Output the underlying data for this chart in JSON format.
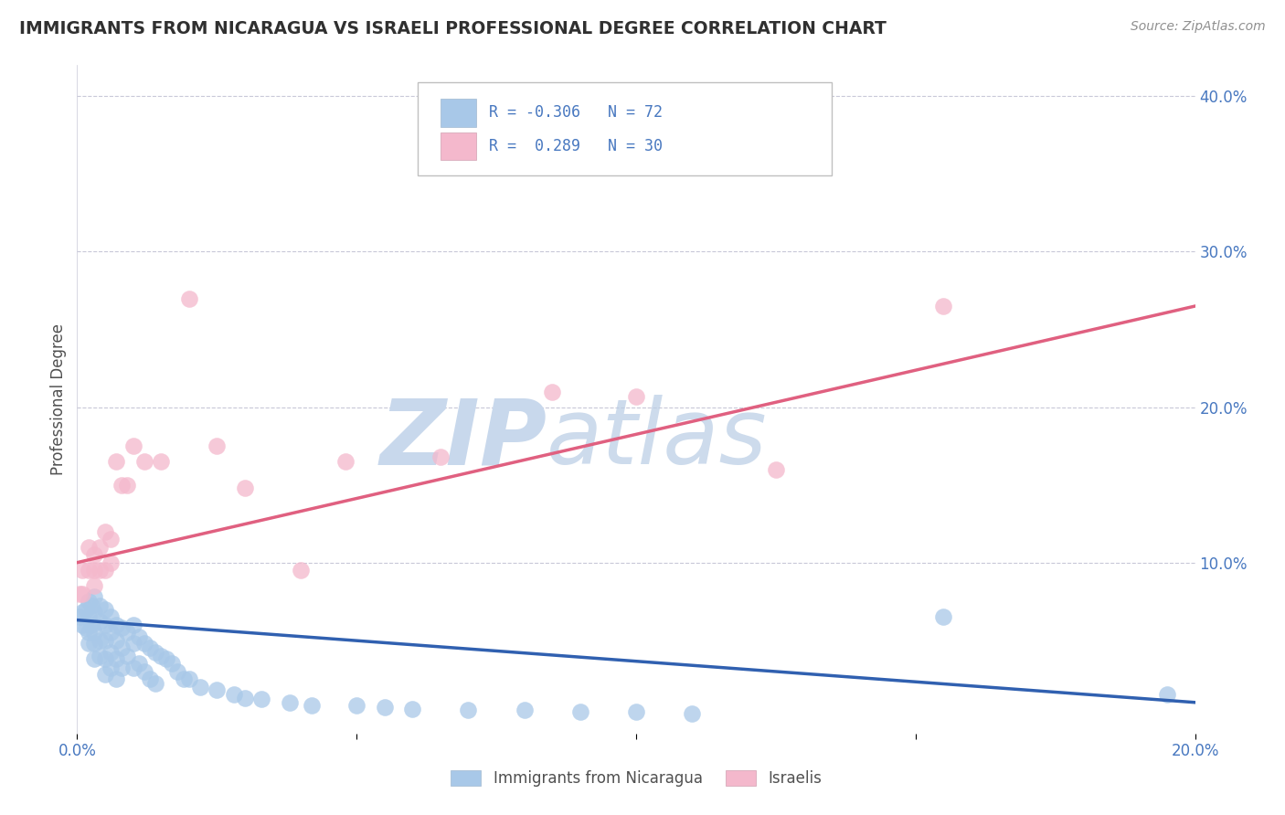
{
  "title": "IMMIGRANTS FROM NICARAGUA VS ISRAELI PROFESSIONAL DEGREE CORRELATION CHART",
  "source": "Source: ZipAtlas.com",
  "ylabel": "Professional Degree",
  "legend_label1": "Immigrants from Nicaragua",
  "legend_label2": "Israelis",
  "R1": -0.306,
  "N1": 72,
  "R2": 0.289,
  "N2": 30,
  "color1": "#a8c8e8",
  "color2": "#f4b8cc",
  "line_color1": "#3060b0",
  "line_color2": "#e06080",
  "bg_color": "#ffffff",
  "grid_color": "#c8c8d8",
  "watermark": "ZIPatlas",
  "watermark_color": "#dce8f4",
  "title_color": "#303030",
  "axis_label_color": "#4878c0",
  "x_min": 0.0,
  "x_max": 0.2,
  "y_min": -0.01,
  "y_max": 0.42,
  "yticks": [
    0.1,
    0.2,
    0.3,
    0.4
  ],
  "blue_scatter_x": [
    0.0005,
    0.001,
    0.001,
    0.0015,
    0.0015,
    0.002,
    0.002,
    0.002,
    0.002,
    0.0025,
    0.0025,
    0.003,
    0.003,
    0.003,
    0.003,
    0.003,
    0.004,
    0.004,
    0.004,
    0.004,
    0.005,
    0.005,
    0.005,
    0.005,
    0.005,
    0.006,
    0.006,
    0.006,
    0.006,
    0.007,
    0.007,
    0.007,
    0.007,
    0.008,
    0.008,
    0.008,
    0.009,
    0.009,
    0.01,
    0.01,
    0.01,
    0.011,
    0.011,
    0.012,
    0.012,
    0.013,
    0.013,
    0.014,
    0.014,
    0.015,
    0.016,
    0.017,
    0.018,
    0.019,
    0.02,
    0.022,
    0.025,
    0.028,
    0.03,
    0.033,
    0.038,
    0.042,
    0.05,
    0.055,
    0.06,
    0.07,
    0.08,
    0.09,
    0.1,
    0.11,
    0.155,
    0.195
  ],
  "blue_scatter_y": [
    0.065,
    0.068,
    0.06,
    0.07,
    0.058,
    0.075,
    0.065,
    0.055,
    0.048,
    0.072,
    0.06,
    0.078,
    0.068,
    0.055,
    0.048,
    0.038,
    0.072,
    0.062,
    0.05,
    0.04,
    0.07,
    0.06,
    0.05,
    0.038,
    0.028,
    0.065,
    0.055,
    0.042,
    0.032,
    0.06,
    0.05,
    0.038,
    0.025,
    0.058,
    0.045,
    0.032,
    0.055,
    0.04,
    0.06,
    0.048,
    0.032,
    0.052,
    0.035,
    0.048,
    0.03,
    0.045,
    0.025,
    0.042,
    0.022,
    0.04,
    0.038,
    0.035,
    0.03,
    0.025,
    0.025,
    0.02,
    0.018,
    0.015,
    0.013,
    0.012,
    0.01,
    0.008,
    0.008,
    0.007,
    0.006,
    0.005,
    0.005,
    0.004,
    0.004,
    0.003,
    0.065,
    0.015
  ],
  "pink_scatter_x": [
    0.0005,
    0.001,
    0.001,
    0.002,
    0.002,
    0.003,
    0.003,
    0.003,
    0.004,
    0.004,
    0.005,
    0.005,
    0.006,
    0.006,
    0.007,
    0.008,
    0.009,
    0.01,
    0.012,
    0.015,
    0.02,
    0.025,
    0.03,
    0.04,
    0.048,
    0.065,
    0.085,
    0.1,
    0.125,
    0.155
  ],
  "pink_scatter_y": [
    0.08,
    0.095,
    0.08,
    0.11,
    0.095,
    0.105,
    0.095,
    0.085,
    0.11,
    0.095,
    0.12,
    0.095,
    0.115,
    0.1,
    0.165,
    0.15,
    0.15,
    0.175,
    0.165,
    0.165,
    0.27,
    0.175,
    0.148,
    0.095,
    0.165,
    0.168,
    0.21,
    0.207,
    0.16,
    0.265
  ],
  "blue_line_x": [
    0.0,
    0.2
  ],
  "blue_line_y": [
    0.063,
    0.01
  ],
  "pink_line_x": [
    0.0,
    0.2
  ],
  "pink_line_y": [
    0.1,
    0.265
  ]
}
